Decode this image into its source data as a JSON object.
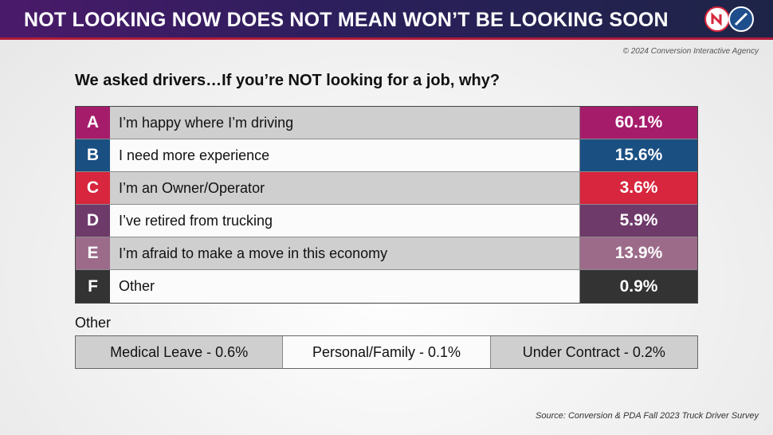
{
  "header": {
    "title": "NOT LOOKING NOW DOES NOT MEAN WON’T BE LOOKING SOON",
    "logos": [
      "logo-icon",
      "compass-logo-icon"
    ]
  },
  "copyright": "© 2024 Conversion Interactive Agency",
  "chart_data": {
    "type": "table",
    "title": "We asked drivers…If you’re NOT looking for a job, why?",
    "rows": [
      {
        "letter": "A",
        "label": "I’m happy where I’m driving",
        "value": "60.1%",
        "color": "#a51c6b"
      },
      {
        "letter": "B",
        "label": "I need more experience",
        "value": "15.6%",
        "color": "#1a4f82"
      },
      {
        "letter": "C",
        "label": "I’m an Owner/Operator",
        "value": "3.6%",
        "color": "#d7263d"
      },
      {
        "letter": "D",
        "label": "I’ve retired from trucking",
        "value": "5.9%",
        "color": "#6e3a6a"
      },
      {
        "letter": "E",
        "label": "I’m afraid to make a move in this economy",
        "value": "13.9%",
        "color": "#9c6b8a"
      },
      {
        "letter": "F",
        "label": "Other",
        "value": "0.9%",
        "color": "#333333"
      }
    ],
    "other": {
      "label": "Other",
      "items": [
        "Medical Leave - 0.6%",
        "Personal/Family - 0.1%",
        "Under Contract - 0.2%"
      ]
    }
  },
  "source": "Source: Conversion & PDA Fall 2023 Truck Driver Survey"
}
